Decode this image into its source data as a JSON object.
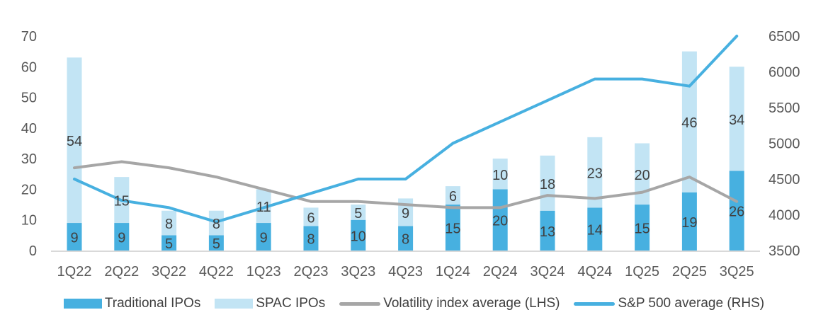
{
  "chart_data": {
    "type": "bar",
    "title": "",
    "categories": [
      "1Q22",
      "2Q22",
      "3Q22",
      "4Q22",
      "1Q23",
      "2Q23",
      "3Q23",
      "4Q23",
      "1Q24",
      "2Q24",
      "3Q24",
      "4Q24",
      "1Q25",
      "2Q25",
      "3Q25"
    ],
    "series": [
      {
        "name": "Traditional IPOs",
        "kind": "stacked-bar",
        "axis": "left",
        "color": "#47B0E0",
        "values": [
          9,
          9,
          5,
          5,
          9,
          8,
          10,
          8,
          15,
          20,
          13,
          14,
          15,
          19,
          26
        ]
      },
      {
        "name": "SPAC IPOs",
        "kind": "stacked-bar",
        "axis": "left",
        "color": "#C2E4F4",
        "values": [
          54,
          15,
          8,
          8,
          11,
          6,
          5,
          9,
          6,
          10,
          18,
          23,
          20,
          46,
          34
        ]
      },
      {
        "name": "Volatility index average (LHS)",
        "kind": "line",
        "axis": "left",
        "color": "#A6A6A6",
        "values": [
          27,
          29,
          27,
          24,
          20,
          16,
          16,
          15,
          14,
          14,
          18,
          17,
          19,
          24,
          16
        ]
      },
      {
        "name": "S&P 500 average (RHS)",
        "kind": "line",
        "axis": "right",
        "color": "#47B0E0",
        "values": [
          4500,
          4200,
          4100,
          3900,
          4100,
          4300,
          4500,
          4500,
          5000,
          5300,
          5600,
          5900,
          5900,
          5800,
          6500
        ]
      }
    ],
    "left_axis": {
      "min": 0,
      "max": 70,
      "ticks": [
        "0",
        "10",
        "20",
        "30",
        "40",
        "50",
        "60",
        "70"
      ]
    },
    "right_axis": {
      "min": 3500,
      "max": 6500,
      "ticks": [
        "3500",
        "4000",
        "4500",
        "5000",
        "5500",
        "6000",
        "6500"
      ]
    },
    "xlabel": "",
    "ylabel": "",
    "grid": false,
    "legend_position": "bottom"
  },
  "legend": [
    {
      "label": "Traditional IPOs",
      "type": "box",
      "color": "#47B0E0"
    },
    {
      "label": "SPAC IPOs",
      "type": "box",
      "color": "#C2E4F4"
    },
    {
      "label": "Volatility index average (LHS)",
      "type": "line",
      "color": "#A6A6A6"
    },
    {
      "label": "S&P 500 average (RHS)",
      "type": "line",
      "color": "#47B0E0"
    }
  ]
}
